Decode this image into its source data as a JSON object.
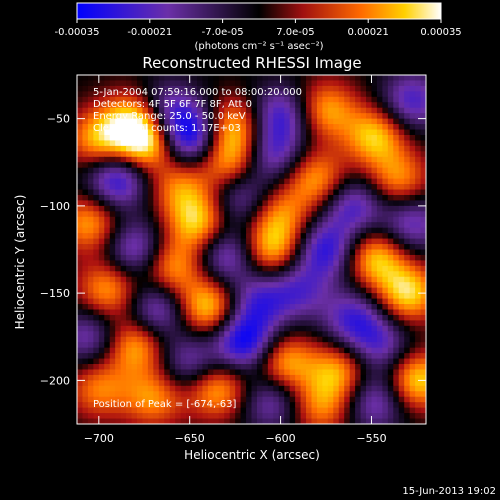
{
  "chart_data": {
    "type": "heatmap",
    "title": "Reconstructed RHESSI Image",
    "xlabel": "Heliocentric X (arcsec)",
    "ylabel": "Heliocentric Y (arcsec)",
    "colorbar": {
      "unit_label": "(photons cm⁻² s⁻¹ asec⁻²)",
      "ticks": [
        "-0.00035",
        "-0.00021",
        "-7.0e-05",
        "7.0e-05",
        "0.00021",
        "0.00035"
      ],
      "range": [
        -0.00035,
        0.00035
      ]
    },
    "xlim": [
      -712,
      -520
    ],
    "ylim": [
      -225,
      -25
    ],
    "x_ticks": [
      -700,
      -650,
      -600,
      -550
    ],
    "y_ticks": [
      -50,
      -100,
      -150,
      -200
    ],
    "x_tick_labels": [
      "−700",
      "−650",
      "−600",
      "−550"
    ],
    "y_tick_labels": [
      "−50",
      "−100",
      "−150",
      "−200"
    ],
    "annotations": [
      "5-Jan-2004 07:59:16.000 to 08:00:20.000",
      "Detectors: 4F 5F 6F 7F 8F, Att 0",
      "Energy Range: 25.0 - 50.0 keV",
      "Clean    Total counts: 1.17E+03"
    ],
    "peak_label": "Position of Peak = [-674,-63]",
    "colors": {
      "negative_min": "#0000ff",
      "negative_mid": "#6b2fa8",
      "zero": "#000000",
      "positive_low": "#b01010",
      "positive_mid": "#ff7a00",
      "positive_max": "#ffffff"
    },
    "blobs": [
      {
        "x": -700,
        "y": -62,
        "v": 0.00025
      },
      {
        "x": -682,
        "y": -50,
        "v": 0.00021
      },
      {
        "x": -674,
        "y": -63,
        "v": 0.00035
      },
      {
        "x": -650,
        "y": -60,
        "v": -0.00034
      },
      {
        "x": -662,
        "y": -45,
        "v": -0.0002
      },
      {
        "x": -625,
        "y": -55,
        "v": 0.00026
      },
      {
        "x": -628,
        "y": -75,
        "v": 0.00024
      },
      {
        "x": -600,
        "y": -48,
        "v": -0.00025
      },
      {
        "x": -605,
        "y": -70,
        "v": -0.00022
      },
      {
        "x": -575,
        "y": -45,
        "v": 0.00024
      },
      {
        "x": -548,
        "y": -60,
        "v": 0.00028
      },
      {
        "x": -528,
        "y": -40,
        "v": -0.00024
      },
      {
        "x": -690,
        "y": -85,
        "v": -0.0003
      },
      {
        "x": -655,
        "y": -90,
        "v": 0.0002
      },
      {
        "x": -645,
        "y": -110,
        "v": 0.00028
      },
      {
        "x": -622,
        "y": -95,
        "v": -0.0002
      },
      {
        "x": -600,
        "y": -105,
        "v": 0.0002
      },
      {
        "x": -580,
        "y": -85,
        "v": 0.00024
      },
      {
        "x": -560,
        "y": -100,
        "v": -0.00024
      },
      {
        "x": -535,
        "y": -85,
        "v": 0.00022
      },
      {
        "x": -705,
        "y": -110,
        "v": 0.00024
      },
      {
        "x": -680,
        "y": -125,
        "v": -0.00024
      },
      {
        "x": -660,
        "y": -135,
        "v": 0.00024
      },
      {
        "x": -630,
        "y": -128,
        "v": -0.00024
      },
      {
        "x": -605,
        "y": -125,
        "v": 0.00026
      },
      {
        "x": -575,
        "y": -125,
        "v": -0.00028
      },
      {
        "x": -548,
        "y": -130,
        "v": 0.00028
      },
      {
        "x": -528,
        "y": -110,
        "v": -0.00022
      },
      {
        "x": -695,
        "y": -148,
        "v": 0.00024
      },
      {
        "x": -668,
        "y": -160,
        "v": -0.00024
      },
      {
        "x": -640,
        "y": -158,
        "v": 0.0003
      },
      {
        "x": -612,
        "y": -155,
        "v": -0.00022
      },
      {
        "x": -590,
        "y": -148,
        "v": -0.0002
      },
      {
        "x": -560,
        "y": -165,
        "v": -0.00024
      },
      {
        "x": -530,
        "y": -150,
        "v": 0.0003
      },
      {
        "x": -705,
        "y": -175,
        "v": -0.0002
      },
      {
        "x": -680,
        "y": -180,
        "v": 0.00026
      },
      {
        "x": -650,
        "y": -190,
        "v": -0.0002
      },
      {
        "x": -620,
        "y": -178,
        "v": -0.00034
      },
      {
        "x": -598,
        "y": -190,
        "v": 0.00026
      },
      {
        "x": -568,
        "y": -195,
        "v": 0.00024
      },
      {
        "x": -545,
        "y": -180,
        "v": -0.0002
      },
      {
        "x": -525,
        "y": -200,
        "v": 0.0003
      },
      {
        "x": -700,
        "y": -205,
        "v": 0.0002
      },
      {
        "x": -670,
        "y": -210,
        "v": 0.00022
      },
      {
        "x": -635,
        "y": -205,
        "v": 0.00026
      },
      {
        "x": -605,
        "y": -212,
        "v": -0.0002
      },
      {
        "x": -578,
        "y": -215,
        "v": 0.0002
      },
      {
        "x": -548,
        "y": -212,
        "v": -0.00022
      }
    ]
  },
  "footer": {
    "timestamp": "15-Jun-2013 19:02"
  }
}
